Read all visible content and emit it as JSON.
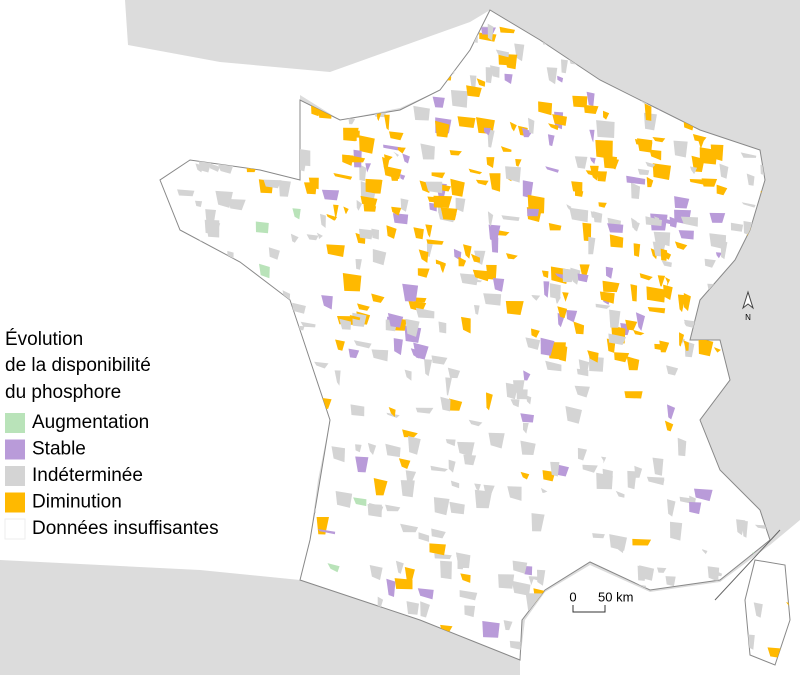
{
  "legend": {
    "title": [
      "Évolution",
      "de la disponibilité",
      "du phosphore"
    ],
    "items": [
      {
        "label": "Augmentation",
        "color": "#b9e3b9"
      },
      {
        "label": "Stable",
        "color": "#b99bd9"
      },
      {
        "label": "Indéterminée",
        "color": "#d4d4d4"
      },
      {
        "label": "Diminution",
        "color": "#ffb900"
      },
      {
        "label": "Données insuffisantes",
        "color": "#ffffff"
      }
    ]
  },
  "scale": {
    "labels": [
      "0",
      "50 km"
    ]
  },
  "north": "N"
}
